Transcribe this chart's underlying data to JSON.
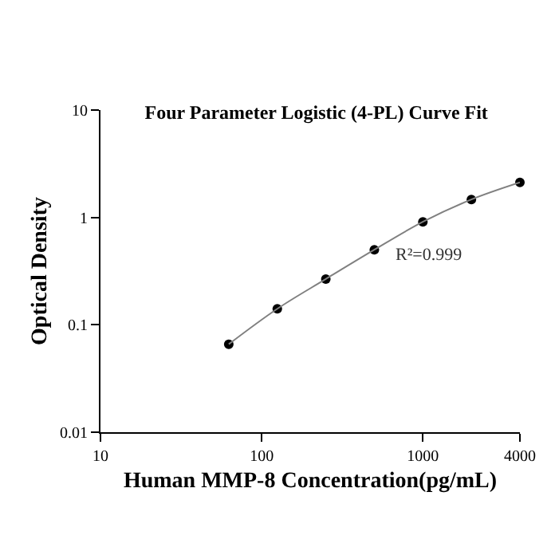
{
  "chart_data": {
    "type": "scatter",
    "title": "Four Parameter Logistic (4-PL) Curve Fit",
    "xlabel": "Human MMP-8 Concentration(pg/mL)",
    "ylabel": "Optical Density",
    "annotations": [
      "R²=0.999"
    ],
    "x": [
      62.5,
      125,
      250,
      500,
      1000,
      2000,
      4000
    ],
    "series": [
      {
        "color": "#000000",
        "values": [
          0.066,
          0.141,
          0.267,
          0.5,
          0.91,
          1.47,
          2.12
        ]
      },
      {
        "type": "line",
        "marker": "none",
        "color": "#808080",
        "values": [
          0.066,
          0.141,
          0.267,
          0.5,
          0.91,
          1.47,
          2.12
        ]
      }
    ],
    "log": "xy",
    "xlim": [
      10,
      4000
    ],
    "ylim": [
      0.01,
      10
    ],
    "xticks": [
      10,
      100,
      1000,
      4000
    ],
    "yticks": [
      0.01,
      0.1,
      1,
      10
    ],
    "legend": false,
    "marker": "circle"
  }
}
